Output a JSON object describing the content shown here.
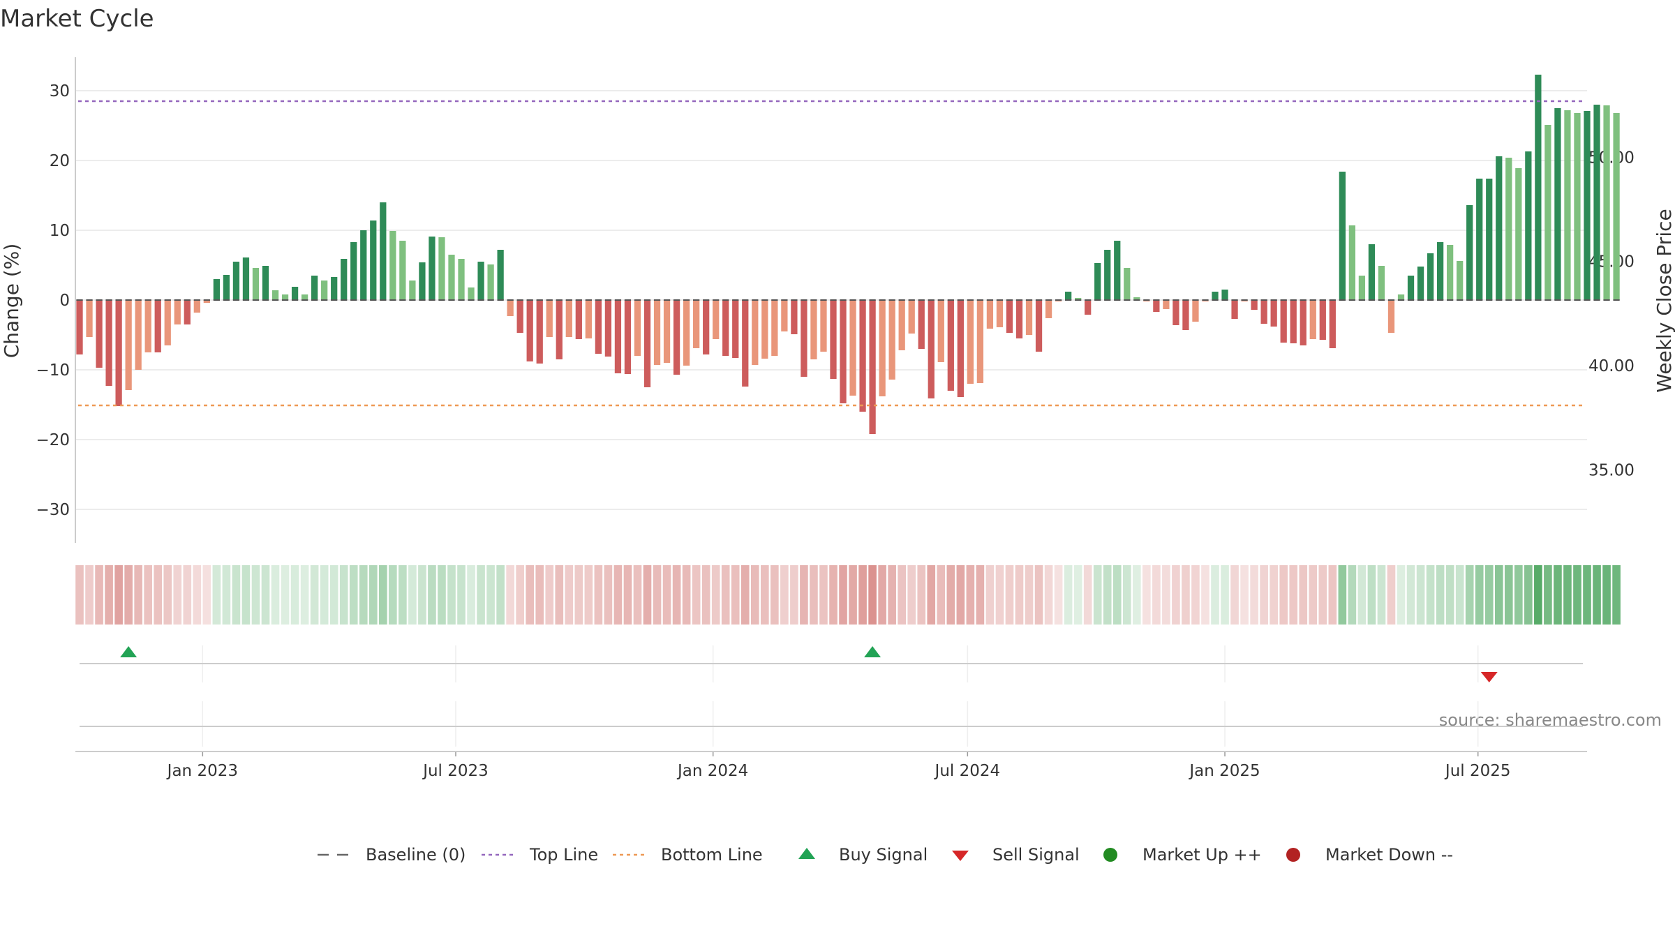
{
  "chart_data": {
    "type": "bar",
    "title": "Market Cycle",
    "ylabel": "Change (%)",
    "y2label": "Weekly Close Price",
    "ylim": [
      -35,
      35
    ],
    "y2lim": [
      31.5,
      54.8
    ],
    "yticks": [
      30,
      20,
      10,
      0,
      -10,
      -20,
      -30
    ],
    "ytick_labels": [
      "30",
      "20",
      "10",
      "0",
      "−10",
      "−20",
      "−30"
    ],
    "y2ticks": [
      50,
      45,
      40,
      35
    ],
    "y2tick_labels": [
      "50.00",
      "45.00",
      "40.00",
      "35.00"
    ],
    "top_line": 28.5,
    "bottom_line": -15.1,
    "baseline": 0,
    "grid": true,
    "x_start": "2022-10-02",
    "x_end": "2025-09-17",
    "first_week": "2022-10-05",
    "xticks": [
      "2023-01-01",
      "2023-07-01",
      "2024-01-01",
      "2024-07-01",
      "2025-01-01",
      "2025-07-01"
    ],
    "xtick_labels": [
      "Jan 2023",
      "Jul 2023",
      "Jan 2024",
      "Jul 2024",
      "Jan 2025",
      "Jul 2025"
    ],
    "values": [
      -7.8,
      -5.3,
      -9.7,
      -12.3,
      -15.2,
      -12.9,
      -10.0,
      -7.5,
      -7.5,
      -6.5,
      -3.5,
      -3.5,
      -1.8,
      -0.4,
      3.0,
      3.6,
      5.5,
      6.1,
      4.6,
      4.9,
      1.4,
      0.8,
      1.9,
      0.8,
      3.5,
      2.8,
      3.3,
      5.9,
      8.3,
      10.0,
      11.4,
      14.0,
      9.9,
      8.5,
      2.8,
      5.4,
      9.1,
      9.0,
      6.5,
      5.9,
      1.8,
      5.5,
      5.1,
      7.2,
      -2.3,
      -4.7,
      -8.8,
      -9.1,
      -5.3,
      -8.5,
      -5.3,
      -5.6,
      -5.5,
      -7.7,
      -8.1,
      -10.5,
      -10.6,
      -8.0,
      -12.5,
      -9.3,
      -9.0,
      -10.7,
      -9.4,
      -6.9,
      -7.8,
      -5.6,
      -8.0,
      -8.3,
      -12.4,
      -9.3,
      -8.4,
      -8.0,
      -4.5,
      -4.9,
      -11.0,
      -8.5,
      -7.4,
      -11.3,
      -14.8,
      -13.7,
      -16.0,
      -19.2,
      -13.8,
      -11.4,
      -7.2,
      -4.8,
      -7.0,
      -14.1,
      -8.9,
      -13.0,
      -13.9,
      -12.0,
      -11.9,
      -4.1,
      -3.9,
      -4.7,
      -5.5,
      -5.0,
      -7.4,
      -2.6,
      -0.2,
      1.2,
      0.3,
      -2.1,
      5.3,
      7.2,
      8.5,
      4.6,
      0.4,
      -0.2,
      -1.7,
      -1.3,
      -3.6,
      -4.3,
      -3.1,
      -0.2,
      1.2,
      1.5,
      -2.7,
      -0.2,
      -1.4,
      -3.4,
      -3.8,
      -6.1,
      -6.2,
      -6.5,
      -5.6,
      -5.7,
      -6.9,
      18.4,
      10.7,
      3.5,
      8.0,
      4.9,
      -4.7,
      0.8,
      3.5,
      4.8,
      6.7,
      8.3,
      7.9,
      5.6,
      13.6,
      17.4,
      17.4,
      20.6,
      20.4,
      18.9,
      21.3,
      32.3,
      25.1,
      27.5,
      27.2,
      26.8,
      27.1,
      28.0,
      27.9,
      26.8
    ],
    "bar_colors": {
      "strong_up": "#2e8b57",
      "weak_up": "#7fc07f",
      "strong_down": "#cd5c5c",
      "weak_down": "#e9967a"
    },
    "heat_strip_colors": {
      "up": "#55aa66",
      "down": "#c85a55"
    },
    "signals": [
      {
        "type": "buy",
        "date": "2022-11-09"
      },
      {
        "type": "buy",
        "date": "2024-04-24"
      },
      {
        "type": "sell",
        "date": "2025-07-09"
      }
    ],
    "source_text": "source: sharemaestro.com",
    "legend_position": "bottom",
    "legend": [
      {
        "label": "Baseline (0)",
        "marker": "dash",
        "color": "#666666"
      },
      {
        "label": "Top Line",
        "marker": "dotted",
        "color": "#9467bd"
      },
      {
        "label": "Bottom Line",
        "marker": "dotted",
        "color": "#ee9955"
      },
      {
        "label": "Buy Signal",
        "marker": "triangle-up",
        "color": "#22a355"
      },
      {
        "label": "Sell Signal",
        "marker": "triangle-down",
        "color": "#d62728"
      },
      {
        "label": "Market Up ++",
        "marker": "dot",
        "color": "#228b22"
      },
      {
        "label": "Market Down --",
        "marker": "dot",
        "color": "#b22222"
      }
    ]
  }
}
